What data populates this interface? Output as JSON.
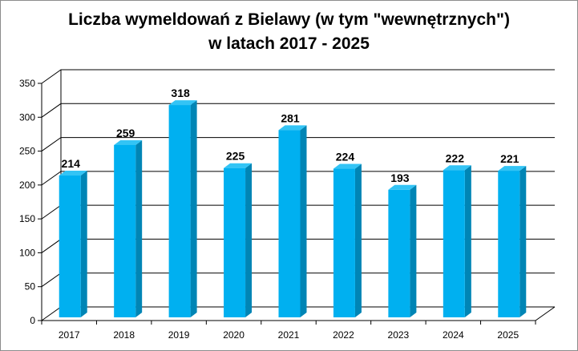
{
  "chart_data": {
    "type": "bar",
    "title": "Liczba wymeldowań z Bielawy (w tym \"wewnętrznych\")",
    "subtitle": "w latach 2017 - 2025",
    "categories": [
      "2017",
      "2018",
      "2019",
      "2020",
      "2021",
      "2022",
      "2023",
      "2024",
      "2025"
    ],
    "values": [
      214,
      259,
      318,
      225,
      281,
      224,
      193,
      222,
      221
    ],
    "data_labels": [
      "214",
      "259",
      "318",
      "225",
      "281",
      "224",
      "193",
      "222",
      "221"
    ],
    "ylim": [
      0,
      350
    ],
    "yticks": [
      0,
      50,
      100,
      150,
      200,
      250,
      300,
      350
    ],
    "ytick_labels": [
      "0",
      "50",
      "100",
      "150",
      "200",
      "250",
      "300",
      "350"
    ],
    "xlabel": "",
    "ylabel": "",
    "grid": true,
    "legend": "none",
    "style": "3d-columns",
    "colors": {
      "bar_front": "#00b0f0",
      "bar_side": "#0085b5",
      "bar_top": "#33c4f5",
      "grid": "#000000",
      "frame": "#8c8c8c"
    }
  }
}
